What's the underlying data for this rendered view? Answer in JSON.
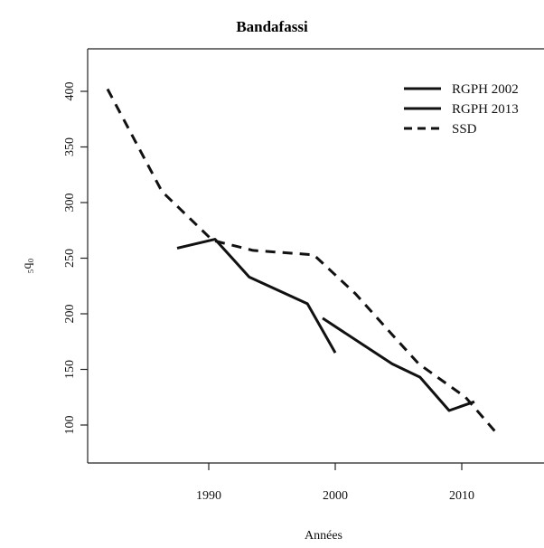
{
  "chart_data": {
    "type": "line",
    "title": "Bandafassi",
    "xlabel": "Années",
    "ylabel": "₅q₀",
    "xlim": [
      1981,
      2016
    ],
    "ylim": [
      80,
      420
    ],
    "x_ticks": [
      1990,
      2000,
      2010
    ],
    "y_ticks": [
      100,
      150,
      200,
      250,
      300,
      350,
      400
    ],
    "grid": false,
    "legend_position": "top-right",
    "series": [
      {
        "name": "RGPH 2002",
        "style": "solid",
        "color": "#111111",
        "points": [
          [
            1987.5,
            259
          ],
          [
            1990.5,
            267
          ],
          [
            1993.2,
            233
          ],
          [
            1997.8,
            209
          ],
          [
            2000,
            165
          ]
        ]
      },
      {
        "name": "RGPH 2013",
        "style": "solid",
        "color": "#111111",
        "points": [
          [
            1999,
            196
          ],
          [
            2004.5,
            155
          ],
          [
            2006.7,
            143
          ],
          [
            2009,
            113
          ],
          [
            2011,
            121
          ]
        ]
      },
      {
        "name": "SSD",
        "style": "dashed",
        "color": "#111111",
        "points": [
          [
            1982,
            402
          ],
          [
            1986.3,
            310
          ],
          [
            1990.3,
            266
          ],
          [
            1993.5,
            257
          ],
          [
            1998.3,
            253
          ],
          [
            2001.6,
            218
          ],
          [
            2004.6,
            180
          ],
          [
            2006.6,
            155
          ],
          [
            2010.3,
            125
          ],
          [
            2012.8,
            92
          ]
        ]
      }
    ]
  }
}
